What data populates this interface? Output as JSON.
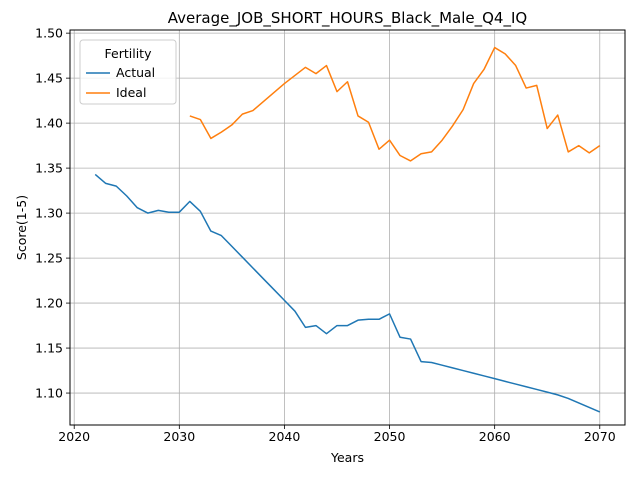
{
  "chart_data": {
    "type": "line",
    "title": "Average_JOB_SHORT_HOURS_Black_Male_Q4_IQ",
    "xlabel": "Years",
    "ylabel": "Score(1-5)",
    "xlim": [
      2019.6,
      2072.4
    ],
    "ylim": [
      1.0645,
      1.5035
    ],
    "xticks": [
      2020,
      2030,
      2040,
      2050,
      2060,
      2070
    ],
    "yticks": [
      1.1,
      1.15,
      1.2,
      1.25,
      1.3,
      1.35,
      1.4,
      1.45,
      1.5
    ],
    "grid": true,
    "legend": {
      "title": "Fertility",
      "placement": "top-left"
    },
    "series": [
      {
        "name": "Actual",
        "color": "#1f77b4",
        "x": [
          2022,
          2023,
          2024,
          2025,
          2026,
          2027,
          2028,
          2029,
          2030,
          2031,
          2032,
          2033,
          2034,
          2035,
          2036,
          2037,
          2038,
          2039,
          2040,
          2041,
          2042,
          2043,
          2044,
          2045,
          2046,
          2047,
          2048,
          2049,
          2050,
          2051,
          2052,
          2053,
          2054,
          2055,
          2056,
          2057,
          2058,
          2059,
          2060,
          2061,
          2062,
          2063,
          2064,
          2065,
          2066,
          2067,
          2068,
          2069,
          2070
        ],
        "y": [
          1.343,
          1.333,
          1.33,
          1.319,
          1.306,
          1.3,
          1.303,
          1.301,
          1.301,
          1.313,
          1.302,
          1.28,
          1.275,
          1.263,
          1.251,
          1.239,
          1.227,
          1.215,
          1.203,
          1.191,
          1.173,
          1.175,
          1.166,
          1.175,
          1.175,
          1.181,
          1.182,
          1.182,
          1.188,
          1.162,
          1.16,
          1.135,
          1.134,
          1.131,
          1.128,
          1.125,
          1.122,
          1.119,
          1.116,
          1.113,
          1.11,
          1.107,
          1.104,
          1.101,
          1.098,
          1.094,
          1.089,
          1.084,
          1.079
        ]
      },
      {
        "name": "Ideal",
        "color": "#ff7f0e",
        "x": [
          2031,
          2032,
          2033,
          2034,
          2035,
          2036,
          2037,
          2038,
          2039,
          2040,
          2041,
          2042,
          2043,
          2044,
          2045,
          2046,
          2047,
          2048,
          2049,
          2050,
          2051,
          2052,
          2053,
          2054,
          2055,
          2056,
          2057,
          2058,
          2059,
          2060,
          2061,
          2062,
          2063,
          2064,
          2065,
          2066,
          2067,
          2068,
          2069,
          2070
        ],
        "y": [
          1.408,
          1.404,
          1.383,
          1.39,
          1.398,
          1.41,
          1.414,
          1.424,
          1.434,
          1.444,
          1.453,
          1.462,
          1.455,
          1.464,
          1.435,
          1.446,
          1.408,
          1.401,
          1.371,
          1.381,
          1.364,
          1.358,
          1.366,
          1.368,
          1.381,
          1.397,
          1.415,
          1.444,
          1.46,
          1.484,
          1.477,
          1.464,
          1.439,
          1.442,
          1.394,
          1.409,
          1.368,
          1.375,
          1.367,
          1.375
        ]
      }
    ]
  }
}
